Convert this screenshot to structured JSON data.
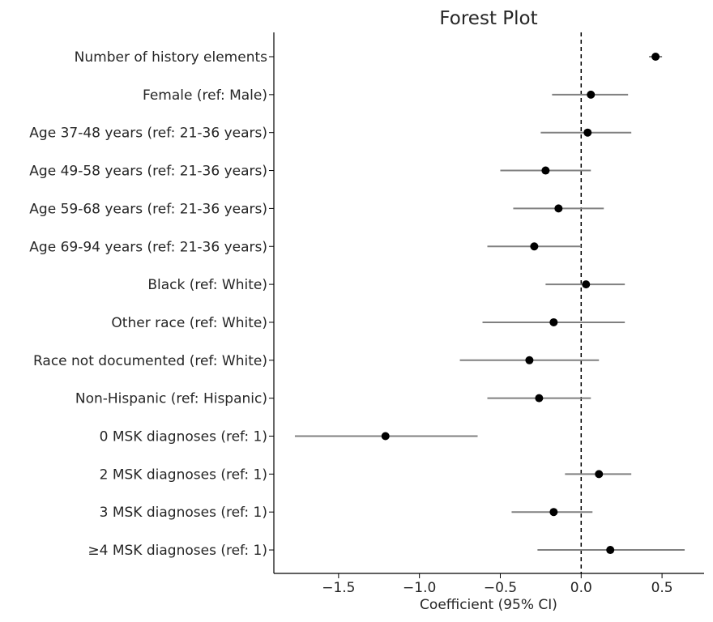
{
  "chart_data": {
    "type": "forest",
    "title": "Forest Plot",
    "xlabel": "Coefficient (95% CI)",
    "ylabel": "",
    "xlim": [
      -1.9,
      0.76
    ],
    "x_ticks": [
      -1.5,
      -1.0,
      -0.5,
      0.0,
      0.5
    ],
    "x_tick_labels": [
      "−1.5",
      "−1.0",
      "−0.5",
      "0.0",
      "0.5"
    ],
    "reference_line": 0,
    "grid": false,
    "rows": [
      {
        "label": "Number of history elements",
        "estimate": 0.46,
        "lower": 0.42,
        "upper": 0.5
      },
      {
        "label": "Female (ref: Male)",
        "estimate": 0.06,
        "lower": -0.18,
        "upper": 0.29
      },
      {
        "label": "Age 37-48 years (ref: 21-36 years)",
        "estimate": 0.04,
        "lower": -0.25,
        "upper": 0.31
      },
      {
        "label": "Age 49-58 years (ref: 21-36 years)",
        "estimate": -0.22,
        "lower": -0.5,
        "upper": 0.06
      },
      {
        "label": "Age 59-68 years (ref: 21-36 years)",
        "estimate": -0.14,
        "lower": -0.42,
        "upper": 0.14
      },
      {
        "label": "Age 69-94 years (ref: 21-36 years)",
        "estimate": -0.29,
        "lower": -0.58,
        "upper": 0.0
      },
      {
        "label": "Black (ref: White)",
        "estimate": 0.03,
        "lower": -0.22,
        "upper": 0.27
      },
      {
        "label": "Other race (ref: White)",
        "estimate": -0.17,
        "lower": -0.61,
        "upper": 0.27
      },
      {
        "label": "Race not documented (ref: White)",
        "estimate": -0.32,
        "lower": -0.75,
        "upper": 0.11
      },
      {
        "label": "Non-Hispanic (ref: Hispanic)",
        "estimate": -0.26,
        "lower": -0.58,
        "upper": 0.06
      },
      {
        "label": "0 MSK diagnoses (ref: 1)",
        "estimate": -1.21,
        "lower": -1.77,
        "upper": -0.64
      },
      {
        "label": "2 MSK diagnoses (ref: 1)",
        "estimate": 0.11,
        "lower": -0.1,
        "upper": 0.31
      },
      {
        "label": "3 MSK diagnoses (ref: 1)",
        "estimate": -0.17,
        "lower": -0.43,
        "upper": 0.07
      },
      {
        "label": "≥4 MSK diagnoses (ref: 1)",
        "estimate": 0.18,
        "lower": -0.27,
        "upper": 0.64
      }
    ],
    "colors": {
      "point": "#000000",
      "ci_line": "#808080",
      "reference_line": "#000000",
      "axis": "#000000",
      "text": "#262626"
    }
  }
}
